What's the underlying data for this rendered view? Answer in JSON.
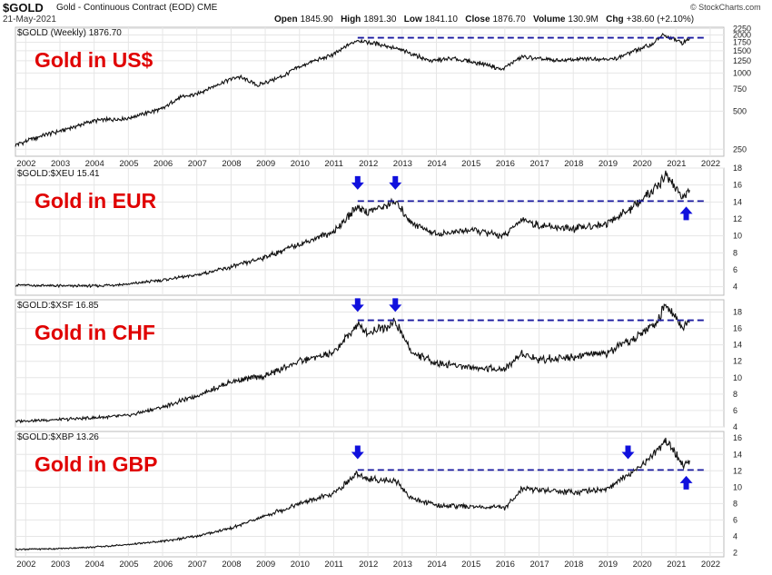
{
  "header": {
    "symbol": "$GOLD",
    "description": "Gold - Continuous Contract (EOD) CME",
    "date": "21-May-2021",
    "ohlc": [
      {
        "label": "Open",
        "value": "1845.90"
      },
      {
        "label": "High",
        "value": "1891.30"
      },
      {
        "label": "Low",
        "value": "1841.10"
      },
      {
        "label": "Close",
        "value": "1876.70"
      },
      {
        "label": "Volume",
        "value": "130.9M"
      },
      {
        "label": "Chg",
        "value": "+38.60 (+2.10%)"
      }
    ],
    "source": "© StockCharts.com"
  },
  "x_axis": {
    "years": [
      "2002",
      "2003",
      "2004",
      "2005",
      "2006",
      "2007",
      "2008",
      "2009",
      "2010",
      "2011",
      "2012",
      "2013",
      "2014",
      "2015",
      "2016",
      "2017",
      "2018",
      "2019",
      "2020",
      "2021",
      "2022"
    ]
  },
  "colors": {
    "line": "#111111",
    "annotation": "#e00000",
    "dashed": "#1a1aa0",
    "arrow": "#1010dd",
    "grid": "#e6e6e6"
  },
  "chart_data": [
    {
      "type": "line",
      "legend": "$GOLD (Weekly) 1876.70",
      "annotation": "Gold in US$",
      "log_scale": true,
      "ylim": [
        220,
        2300
      ],
      "yticks": [
        250,
        500,
        750,
        1000,
        1250,
        1500,
        1750,
        2000,
        2250
      ],
      "resistance": 1900,
      "x": [
        2001.7,
        2002.5,
        2003.2,
        2004,
        2005,
        2006,
        2006.5,
        2007,
        2008.2,
        2008.8,
        2009.5,
        2010,
        2011,
        2011.7,
        2012.5,
        2013.3,
        2013.8,
        2014.5,
        2015.5,
        2015.9,
        2016.5,
        2017.5,
        2018.5,
        2019.2,
        2019.8,
        2020.3,
        2020.6,
        2020.9,
        2021.2,
        2021.4
      ],
      "values": [
        270,
        320,
        360,
        420,
        440,
        520,
        640,
        680,
        940,
        800,
        940,
        1120,
        1400,
        1820,
        1650,
        1420,
        1250,
        1300,
        1160,
        1060,
        1340,
        1250,
        1300,
        1290,
        1500,
        1680,
        1980,
        1880,
        1720,
        1876.7
      ],
      "arrows": []
    },
    {
      "type": "line",
      "legend": "$GOLD:$XEU 15.41",
      "annotation": "Gold in EUR",
      "log_scale": false,
      "ylim": [
        3,
        18
      ],
      "yticks": [
        4,
        6,
        8,
        10,
        12,
        14,
        16,
        18
      ],
      "resistance": 14.1,
      "x": [
        2001.7,
        2003,
        2004,
        2005,
        2006,
        2007,
        2008,
        2009,
        2010,
        2011,
        2011.7,
        2012,
        2012.8,
        2013.3,
        2014,
        2015,
        2016,
        2016.5,
        2017,
        2018,
        2019,
        2019.8,
        2020.5,
        2020.7,
        2021.2,
        2021.4
      ],
      "values": [
        4.2,
        4.1,
        4.1,
        4.3,
        4.8,
        5.4,
        6.3,
        7.5,
        9.0,
        10.5,
        13.5,
        12.8,
        14.0,
        11.5,
        10.2,
        10.7,
        10.0,
        12.0,
        11.2,
        10.8,
        11.5,
        13.5,
        16.0,
        17.3,
        14.5,
        15.41
      ],
      "arrows": [
        {
          "x": 2011.7,
          "dir": "down",
          "at": 16.3
        },
        {
          "x": 2012.8,
          "dir": "down",
          "at": 16.3
        },
        {
          "x": 2021.3,
          "dir": "up",
          "at": 12.6
        }
      ]
    },
    {
      "type": "line",
      "legend": "$GOLD:$XSF 16.85",
      "annotation": "Gold in CHF",
      "log_scale": false,
      "ylim": [
        4,
        19.5
      ],
      "yticks": [
        4,
        6,
        8,
        10,
        12,
        14,
        16,
        18
      ],
      "resistance": 17.0,
      "x": [
        2001.7,
        2003,
        2004,
        2005,
        2006,
        2007,
        2008,
        2009,
        2010,
        2011,
        2011.7,
        2012,
        2012.8,
        2013.3,
        2014,
        2015,
        2016,
        2016.5,
        2017,
        2018,
        2019,
        2019.8,
        2020.5,
        2020.7,
        2021.2,
        2021.4
      ],
      "values": [
        4.7,
        4.9,
        5.1,
        5.4,
        6.4,
        7.8,
        9.5,
        10.2,
        12.0,
        13.0,
        16.5,
        15.5,
        16.7,
        13.0,
        11.8,
        11.3,
        11.0,
        13.0,
        12.2,
        12.6,
        13.0,
        14.8,
        17.0,
        19.3,
        16.0,
        16.85
      ],
      "arrows": [
        {
          "x": 2011.7,
          "dir": "down",
          "at": 18.9
        },
        {
          "x": 2012.8,
          "dir": "down",
          "at": 18.9
        }
      ]
    },
    {
      "type": "line",
      "legend": "$GOLD:$XBP 13.26",
      "annotation": "Gold in GBP",
      "log_scale": false,
      "ylim": [
        1.5,
        16.8
      ],
      "yticks": [
        2,
        4,
        6,
        8,
        10,
        12,
        14,
        16
      ],
      "resistance": 12.1,
      "x": [
        2001.7,
        2003,
        2004,
        2005,
        2006,
        2007,
        2008,
        2009,
        2010,
        2011,
        2011.7,
        2012,
        2012.8,
        2013.3,
        2014,
        2015,
        2016,
        2016.5,
        2017,
        2018,
        2019,
        2019.8,
        2020.5,
        2020.7,
        2021.2,
        2021.4
      ],
      "values": [
        2.4,
        2.5,
        2.7,
        3.0,
        3.4,
        4.0,
        5.0,
        6.5,
        8.0,
        9.2,
        11.7,
        11.0,
        10.8,
        8.6,
        7.8,
        7.6,
        7.5,
        9.8,
        9.7,
        9.4,
        9.8,
        12.0,
        14.7,
        15.9,
        12.7,
        13.26
      ],
      "arrows": [
        {
          "x": 2011.7,
          "dir": "down",
          "at": 14.3
        },
        {
          "x": 2019.6,
          "dir": "down",
          "at": 14.3
        },
        {
          "x": 2021.3,
          "dir": "up",
          "at": 10.5
        }
      ]
    }
  ]
}
